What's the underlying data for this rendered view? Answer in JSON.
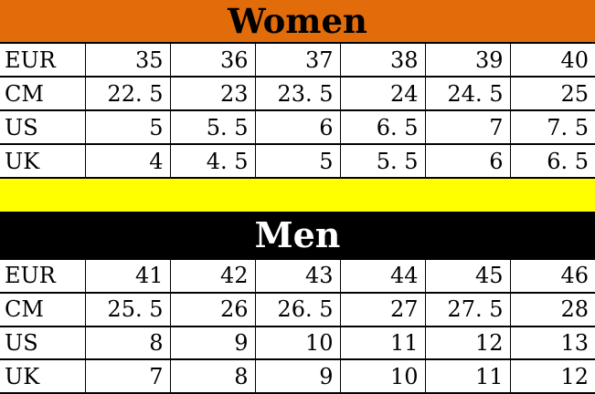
{
  "colors": {
    "women_header_bg": "#e26b0a",
    "women_header_text": "#000000",
    "men_header_bg": "#000000",
    "men_header_text": "#ffffff",
    "divider_bg": "#ffff00",
    "table_bg": "#ffffff",
    "table_text": "#000000",
    "border": "#000000"
  },
  "women": {
    "title": "Women",
    "rows": [
      {
        "label": "EUR",
        "values": [
          "35",
          "36",
          "37",
          "38",
          "39",
          "40"
        ]
      },
      {
        "label": "CM",
        "values": [
          "22. 5",
          "23",
          "23. 5",
          "24",
          "24. 5",
          "25"
        ]
      },
      {
        "label": "US",
        "values": [
          "5",
          "5. 5",
          "6",
          "6. 5",
          "7",
          "7. 5"
        ]
      },
      {
        "label": "UK",
        "values": [
          "4",
          "4. 5",
          "5",
          "5. 5",
          "6",
          "6. 5"
        ]
      }
    ]
  },
  "men": {
    "title": "Men",
    "rows": [
      {
        "label": "EUR",
        "values": [
          "41",
          "42",
          "43",
          "44",
          "45",
          "46"
        ]
      },
      {
        "label": "CM",
        "values": [
          "25. 5",
          "26",
          "26. 5",
          "27",
          "27. 5",
          "28"
        ]
      },
      {
        "label": "US",
        "values": [
          "8",
          "9",
          "10",
          "11",
          "12",
          "13"
        ]
      },
      {
        "label": "UK",
        "values": [
          "7",
          "8",
          "9",
          "10",
          "11",
          "12"
        ]
      }
    ]
  },
  "chart_data": [
    {
      "type": "table",
      "title": "Women",
      "row_headers": [
        "EUR",
        "CM",
        "US",
        "UK"
      ],
      "rows": [
        [
          35,
          36,
          37,
          38,
          39,
          40
        ],
        [
          22.5,
          23,
          23.5,
          24,
          24.5,
          25
        ],
        [
          5,
          5.5,
          6,
          6.5,
          7,
          7.5
        ],
        [
          4,
          4.5,
          5,
          5.5,
          6,
          6.5
        ]
      ]
    },
    {
      "type": "table",
      "title": "Men",
      "row_headers": [
        "EUR",
        "CM",
        "US",
        "UK"
      ],
      "rows": [
        [
          41,
          42,
          43,
          44,
          45,
          46
        ],
        [
          25.5,
          26,
          26.5,
          27,
          27.5,
          28
        ],
        [
          8,
          9,
          10,
          11,
          12,
          13
        ],
        [
          7,
          8,
          9,
          10,
          11,
          12
        ]
      ]
    }
  ]
}
